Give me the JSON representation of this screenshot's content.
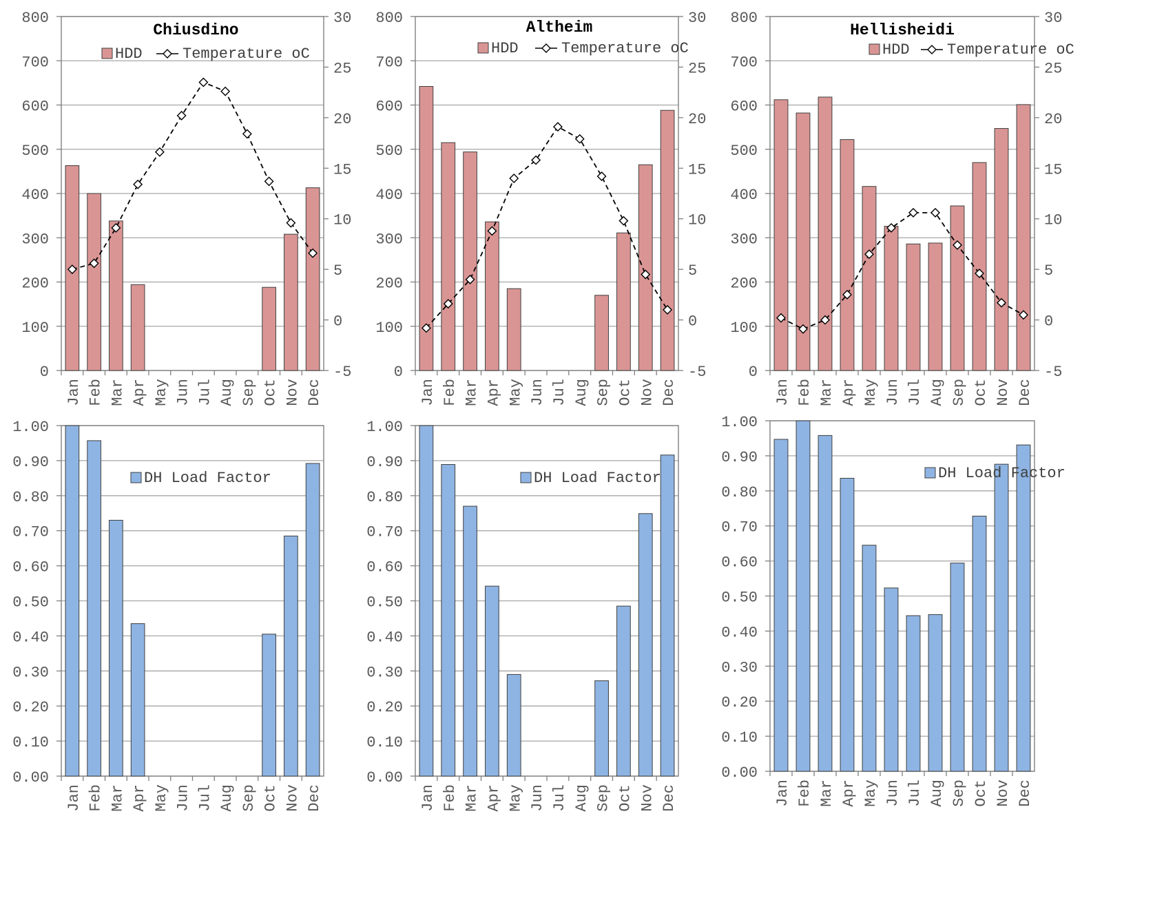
{
  "chart_data": [
    {
      "type": "bar",
      "title": "Chiusdino",
      "categories": [
        "Jan",
        "Feb",
        "Mar",
        "Apr",
        "May",
        "Jun",
        "Jul",
        "Aug",
        "Sep",
        "Oct",
        "Nov",
        "Dec"
      ],
      "series": [
        {
          "name": "HDD",
          "kind": "bar",
          "axis": "left",
          "color": "#d99594",
          "values": [
            463,
            400,
            338,
            194,
            0,
            0,
            0,
            0,
            0,
            188,
            308,
            413
          ]
        },
        {
          "name": "Temperature oC",
          "kind": "line",
          "axis": "right",
          "values": [
            5.0,
            5.6,
            9.1,
            13.4,
            16.6,
            20.2,
            23.5,
            22.6,
            18.4,
            13.7,
            9.6,
            6.6
          ]
        }
      ],
      "ylim": [
        0,
        800
      ],
      "yticks": [
        "0",
        "100",
        "200",
        "300",
        "400",
        "500",
        "600",
        "700",
        "800"
      ],
      "y2lim": [
        -5,
        30
      ],
      "y2ticks": [
        "-5",
        "0",
        "5",
        "10",
        "15",
        "20",
        "25",
        "30"
      ],
      "legend": "top"
    },
    {
      "type": "bar",
      "title": "Altheim",
      "categories": [
        "Jan",
        "Feb",
        "Mar",
        "Apr",
        "May",
        "Jun",
        "Jul",
        "Aug",
        "Sep",
        "Oct",
        "Nov",
        "Dec"
      ],
      "series": [
        {
          "name": "HDD",
          "kind": "bar",
          "axis": "left",
          "color": "#d99594",
          "values": [
            642,
            515,
            494,
            336,
            185,
            0,
            0,
            0,
            170,
            311,
            465,
            588
          ]
        },
        {
          "name": "Temperature oC",
          "kind": "line",
          "axis": "right",
          "values": [
            -0.8,
            1.6,
            4.0,
            8.8,
            14.0,
            15.8,
            19.1,
            17.9,
            14.2,
            9.8,
            4.5,
            1.0
          ]
        }
      ],
      "ylim": [
        0,
        800
      ],
      "yticks": [
        "0",
        "100",
        "200",
        "300",
        "400",
        "500",
        "600",
        "700",
        "800"
      ],
      "y2lim": [
        -5,
        30
      ],
      "y2ticks": [
        "-5",
        "0",
        "5",
        "10",
        "15",
        "20",
        "25",
        "30"
      ],
      "legend": "top"
    },
    {
      "type": "bar",
      "title": "Hellisheidi",
      "categories": [
        "Jan",
        "Feb",
        "Mar",
        "Apr",
        "May",
        "Jun",
        "Jul",
        "Aug",
        "Sep",
        "Oct",
        "Nov",
        "Dec"
      ],
      "series": [
        {
          "name": "HDD",
          "kind": "bar",
          "axis": "left",
          "color": "#d99594",
          "values": [
            612,
            582,
            618,
            522,
            416,
            326,
            286,
            288,
            372,
            470,
            547,
            601
          ]
        },
        {
          "name": "Temperature oC",
          "kind": "line",
          "axis": "right",
          "values": [
            0.2,
            -0.9,
            0.0,
            2.5,
            6.5,
            9.1,
            10.6,
            10.6,
            7.4,
            4.6,
            1.7,
            0.5
          ]
        }
      ],
      "ylim": [
        0,
        800
      ],
      "yticks": [
        "0",
        "100",
        "200",
        "300",
        "400",
        "500",
        "600",
        "700",
        "800"
      ],
      "y2lim": [
        -5,
        30
      ],
      "y2ticks": [
        "-5",
        "0",
        "5",
        "10",
        "15",
        "20",
        "25",
        "30"
      ],
      "legend": "top"
    },
    {
      "type": "bar",
      "title": "",
      "categories": [
        "Jan",
        "Feb",
        "Mar",
        "Apr",
        "May",
        "Jun",
        "Jul",
        "Aug",
        "Sep",
        "Oct",
        "Nov",
        "Dec"
      ],
      "series": [
        {
          "name": "DH Load Factor",
          "kind": "bar",
          "axis": "left",
          "color": "#8eb4e3",
          "values": [
            1.0,
            0.957,
            0.73,
            0.435,
            0,
            0,
            0,
            0,
            0,
            0.405,
            0.685,
            0.892
          ]
        }
      ],
      "ylim": [
        0,
        1
      ],
      "yticks": [
        "0.00",
        "0.10",
        "0.20",
        "0.30",
        "0.40",
        "0.50",
        "0.60",
        "0.70",
        "0.80",
        "0.90",
        "1.00"
      ],
      "legend": "top"
    },
    {
      "type": "bar",
      "title": "",
      "categories": [
        "Jan",
        "Feb",
        "Mar",
        "Apr",
        "May",
        "Jun",
        "Jul",
        "Aug",
        "Sep",
        "Oct",
        "Nov",
        "Dec"
      ],
      "series": [
        {
          "name": "DH Load Factor",
          "kind": "bar",
          "axis": "left",
          "color": "#8eb4e3",
          "values": [
            1.0,
            0.889,
            0.77,
            0.542,
            0.29,
            0,
            0,
            0,
            0.272,
            0.485,
            0.749,
            0.916
          ]
        }
      ],
      "ylim": [
        0,
        1
      ],
      "yticks": [
        "0.00",
        "0.10",
        "0.20",
        "0.30",
        "0.40",
        "0.50",
        "0.60",
        "0.70",
        "0.80",
        "0.90",
        "1.00"
      ],
      "legend": "top"
    },
    {
      "type": "bar",
      "title": "",
      "categories": [
        "Jan",
        "Feb",
        "Mar",
        "Apr",
        "May",
        "Jun",
        "Jul",
        "Aug",
        "Sep",
        "Oct",
        "Nov",
        "Dec"
      ],
      "series": [
        {
          "name": "DH Load Factor",
          "kind": "bar",
          "axis": "left",
          "color": "#8eb4e3",
          "values": [
            0.947,
            1.0,
            0.958,
            0.836,
            0.645,
            0.523,
            0.444,
            0.447,
            0.594,
            0.728,
            0.876,
            0.931
          ]
        }
      ],
      "ylim": [
        0,
        1
      ],
      "yticks": [
        "0.00",
        "0.10",
        "0.20",
        "0.30",
        "0.40",
        "0.50",
        "0.60",
        "0.70",
        "0.80",
        "0.90",
        "1.00"
      ],
      "legend": "top"
    }
  ]
}
